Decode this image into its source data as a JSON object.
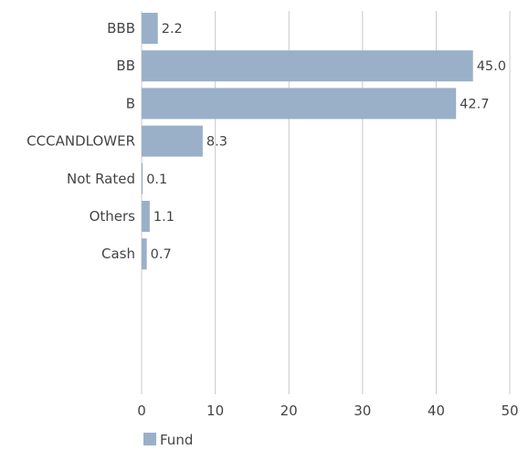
{
  "chart_data": {
    "type": "bar",
    "orientation": "horizontal",
    "categories": [
      "BBB",
      "BB",
      "B",
      "CCCANDLOWER",
      "Not Rated",
      "Others",
      "Cash"
    ],
    "series": [
      {
        "name": "Fund",
        "values": [
          2.2,
          45.0,
          42.7,
          8.3,
          0.1,
          1.1,
          0.7
        ],
        "color": "#9ab0c9"
      }
    ],
    "data_labels": [
      "2.2",
      "45.0",
      "42.7",
      "8.3",
      "0.1",
      "1.1",
      "0.7"
    ],
    "x_ticks": [
      "0",
      "10",
      "20",
      "30",
      "40",
      "50"
    ],
    "xlim": [
      0,
      50
    ],
    "grid": true,
    "legend": {
      "position": "bottom-left",
      "entries": [
        "Fund"
      ]
    }
  }
}
